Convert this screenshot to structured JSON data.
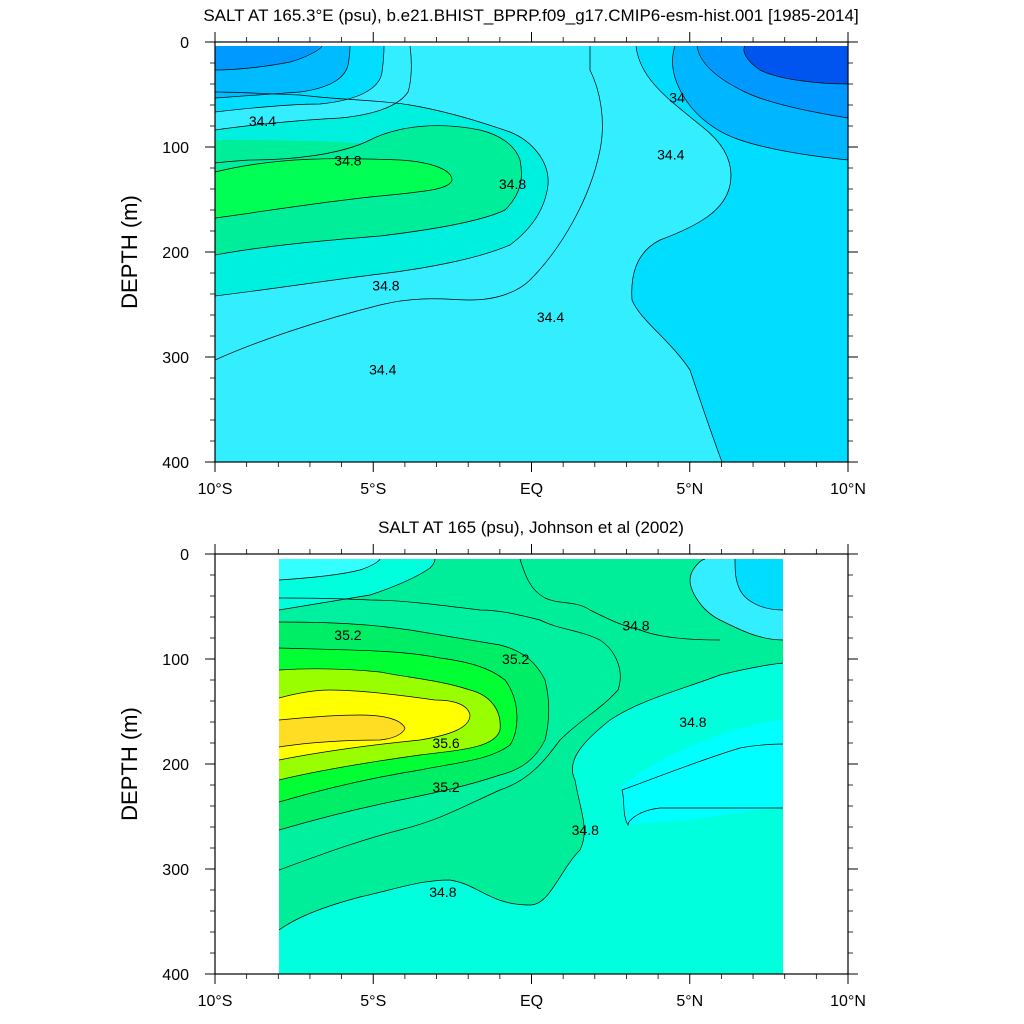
{
  "chart_data": [
    {
      "type": "contour",
      "title": "SALT AT 165.3°E (psu), b.e21.BHIST_BPRP.f09_g17.CMIP6-esm-hist.001 [1985-2014]",
      "ylabel": "DEPTH (m)",
      "x_ticks": [
        "10°S",
        "5°S",
        "EQ",
        "5°N",
        "10°N"
      ],
      "x_tick_values": [
        -10,
        -5,
        0,
        5,
        10
      ],
      "y_ticks": [
        "0",
        "100",
        "200",
        "300",
        "400"
      ],
      "y_tick_values": [
        0,
        100,
        200,
        300,
        400
      ],
      "xlim": [
        -10,
        10
      ],
      "ylim": [
        400,
        0
      ],
      "contour_labels": [
        {
          "text": "34.4",
          "x": -8.5,
          "y": 75
        },
        {
          "text": "34.8",
          "x": -5.8,
          "y": 113
        },
        {
          "text": "34.8",
          "x": -0.6,
          "y": 135
        },
        {
          "text": "34",
          "x": 4.6,
          "y": 53
        },
        {
          "text": "34.4",
          "x": 4.4,
          "y": 107
        },
        {
          "text": "34.8",
          "x": -4.6,
          "y": 232
        },
        {
          "text": "34.4",
          "x": 0.6,
          "y": 262
        },
        {
          "text": "34.4",
          "x": -4.7,
          "y": 312
        }
      ]
    },
    {
      "type": "contour",
      "title": "SALT AT 165 (psu), Johnson et al (2002)",
      "ylabel": "DEPTH (m)",
      "x_ticks": [
        "10°S",
        "5°S",
        "EQ",
        "5°N",
        "10°N"
      ],
      "x_tick_values": [
        -10,
        -5,
        0,
        5,
        10
      ],
      "y_ticks": [
        "0",
        "100",
        "200",
        "300",
        "400"
      ],
      "y_tick_values": [
        0,
        100,
        200,
        300,
        400
      ],
      "xlim": [
        -10,
        10
      ],
      "ylim": [
        400,
        0
      ],
      "contour_labels": [
        {
          "text": "35.2",
          "x": -5.8,
          "y": 77
        },
        {
          "text": "35.2",
          "x": -0.5,
          "y": 100
        },
        {
          "text": "34.8",
          "x": 3.3,
          "y": 68
        },
        {
          "text": "35.6",
          "x": -2.7,
          "y": 180
        },
        {
          "text": "35.2",
          "x": -2.7,
          "y": 222
        },
        {
          "text": "34.8",
          "x": 5.1,
          "y": 160
        },
        {
          "text": "34.8",
          "x": 1.7,
          "y": 263
        },
        {
          "text": "34.8",
          "x": -2.8,
          "y": 322
        }
      ]
    }
  ]
}
